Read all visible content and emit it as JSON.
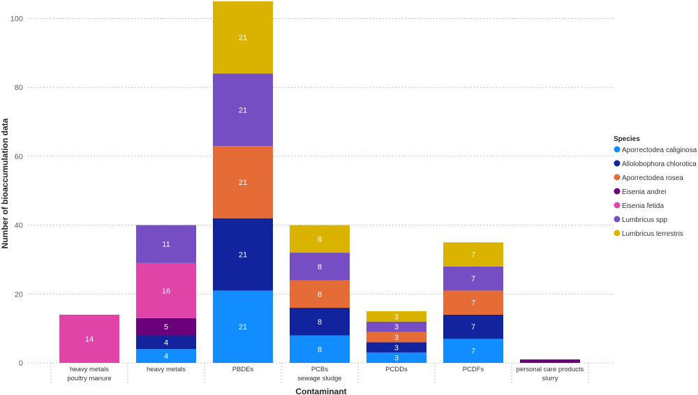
{
  "chart_data": {
    "type": "bar",
    "stacked": true,
    "title": "",
    "xlabel": "Contaminant",
    "ylabel": "Number of bioaccumulation data",
    "ylim": [
      0,
      105
    ],
    "yticks": [
      0,
      20,
      40,
      60,
      80,
      100
    ],
    "grid": true,
    "legend_title": "Species",
    "legend_position": "right",
    "categories": [
      [
        "heavy metals",
        "poultry manure"
      ],
      [
        "heavy metals"
      ],
      [
        "PBDEs"
      ],
      [
        "PCBs",
        "sewage sludge"
      ],
      [
        "PCDDs"
      ],
      [
        "PCDFs"
      ],
      [
        "personal care products",
        "slurry"
      ]
    ],
    "series": [
      {
        "name": "Aporrectodea caliginosa",
        "color": "#118dff",
        "values": [
          0,
          4,
          21,
          8,
          3,
          7,
          0
        ]
      },
      {
        "name": "Allolobophora chlorotica",
        "color": "#12239e",
        "values": [
          0,
          4,
          21,
          8,
          3,
          7,
          0
        ]
      },
      {
        "name": "Aporrectodea rosea",
        "color": "#e66c37",
        "values": [
          0,
          0,
          21,
          8,
          3,
          7,
          0
        ]
      },
      {
        "name": "Eisenia andrei",
        "color": "#6b007b",
        "values": [
          0,
          5,
          0,
          0,
          0,
          0,
          1
        ]
      },
      {
        "name": "Eisenia fetida",
        "color": "#e044a7",
        "values": [
          14,
          16,
          0,
          0,
          0,
          0,
          0
        ]
      },
      {
        "name": "Lumbricus spp",
        "color": "#744ec2",
        "values": [
          0,
          11,
          21,
          8,
          3,
          7,
          0
        ]
      },
      {
        "name": "Lumbricus terrestris",
        "color": "#d9b300",
        "values": [
          0,
          0,
          21,
          8,
          3,
          7,
          0
        ]
      }
    ]
  }
}
